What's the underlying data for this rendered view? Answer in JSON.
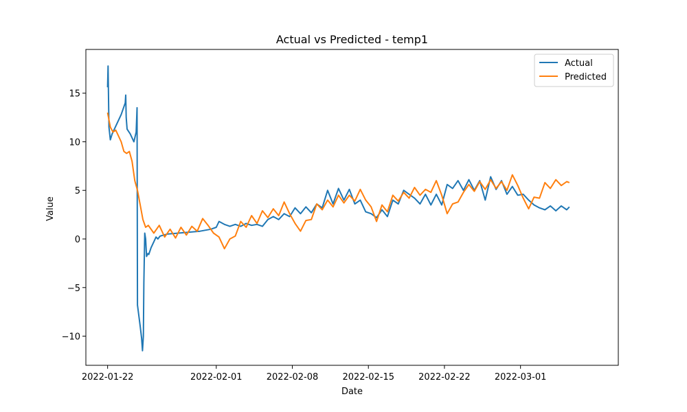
{
  "chart_data": {
    "type": "line",
    "title": "Actual vs Predicted - temp1",
    "xlabel": "Date",
    "ylabel": "Value",
    "xlim": [
      "2022-01-20",
      "2022-03-10"
    ],
    "ylim": [
      -13,
      19.5
    ],
    "x_ticks": [
      "2022-01-22",
      "2022-02-01",
      "2022-02-08",
      "2022-02-15",
      "2022-02-22",
      "2022-03-01"
    ],
    "y_ticks": [
      15,
      10,
      5,
      0,
      -5,
      -10
    ],
    "y_tick_labels": [
      "15",
      "10",
      "5",
      "0",
      "−5",
      "−10"
    ],
    "grid": false,
    "legend_position": "top-right",
    "series": [
      {
        "name": "Actual",
        "color": "#1f77b4",
        "points": [
          [
            "2022-01-22 00:00",
            15.6
          ],
          [
            "2022-01-22 01:00",
            17.8
          ],
          [
            "2022-01-22 03:00",
            11.5
          ],
          [
            "2022-01-22 06:00",
            10.2
          ],
          [
            "2022-01-22 10:00",
            10.8
          ],
          [
            "2022-01-23 06:00",
            12.8
          ],
          [
            "2022-01-23 15:00",
            14.0
          ],
          [
            "2022-01-23 16:00",
            14.8
          ],
          [
            "2022-01-23 17:00",
            12.5
          ],
          [
            "2022-01-23 19:00",
            11.3
          ],
          [
            "2022-01-24 02:00",
            10.8
          ],
          [
            "2022-01-24 10:00",
            10.0
          ],
          [
            "2022-01-24 15:00",
            11.0
          ],
          [
            "2022-01-24 17:00",
            13.5
          ],
          [
            "2022-01-24 18:00",
            -6.8
          ],
          [
            "2022-01-25 00:00",
            -9.0
          ],
          [
            "2022-01-25 03:00",
            -10.2
          ],
          [
            "2022-01-25 05:00",
            -11.5
          ],
          [
            "2022-01-25 07:00",
            -10.0
          ],
          [
            "2022-01-25 08:00",
            -4.5
          ],
          [
            "2022-01-25 10:00",
            0.6
          ],
          [
            "2022-01-25 12:00",
            0.0
          ],
          [
            "2022-01-25 14:00",
            -1.8
          ],
          [
            "2022-01-25 17:00",
            -1.5
          ],
          [
            "2022-01-25 19:00",
            -1.6
          ],
          [
            "2022-01-26 00:00",
            -0.9
          ],
          [
            "2022-01-26 06:00",
            -0.3
          ],
          [
            "2022-01-26 11:00",
            0.2
          ],
          [
            "2022-01-26 15:00",
            0.0
          ],
          [
            "2022-01-26 20:00",
            0.3
          ],
          [
            "2022-01-27 12:00",
            0.5
          ],
          [
            "2022-01-28 12:00",
            0.6
          ],
          [
            "2022-01-29 12:00",
            0.7
          ],
          [
            "2022-01-30 12:00",
            0.8
          ],
          [
            "2022-01-31 12:00",
            1.0
          ],
          [
            "2022-02-01 00:00",
            1.2
          ],
          [
            "2022-02-01 06:00",
            1.8
          ],
          [
            "2022-02-01 18:00",
            1.5
          ],
          [
            "2022-02-02 06:00",
            1.3
          ],
          [
            "2022-02-02 18:00",
            1.5
          ],
          [
            "2022-02-03 06:00",
            1.3
          ],
          [
            "2022-02-03 18:00",
            1.6
          ],
          [
            "2022-02-04 06:00",
            1.4
          ],
          [
            "2022-02-04 18:00",
            1.5
          ],
          [
            "2022-02-05 06:00",
            1.3
          ],
          [
            "2022-02-05 18:00",
            2.0
          ],
          [
            "2022-02-06 06:00",
            2.3
          ],
          [
            "2022-02-06 18:00",
            2.0
          ],
          [
            "2022-02-07 06:00",
            2.6
          ],
          [
            "2022-02-07 18:00",
            2.3
          ],
          [
            "2022-02-08 06:00",
            3.2
          ],
          [
            "2022-02-08 18:00",
            2.6
          ],
          [
            "2022-02-09 06:00",
            3.3
          ],
          [
            "2022-02-09 18:00",
            2.7
          ],
          [
            "2022-02-10 06:00",
            3.6
          ],
          [
            "2022-02-10 18:00",
            3.2
          ],
          [
            "2022-02-11 06:00",
            5.0
          ],
          [
            "2022-02-11 18:00",
            3.6
          ],
          [
            "2022-02-12 06:00",
            5.2
          ],
          [
            "2022-02-12 18:00",
            4.0
          ],
          [
            "2022-02-13 06:00",
            5.1
          ],
          [
            "2022-02-13 18:00",
            3.6
          ],
          [
            "2022-02-14 06:00",
            4.0
          ],
          [
            "2022-02-14 18:00",
            2.8
          ],
          [
            "2022-02-15 06:00",
            2.6
          ],
          [
            "2022-02-15 18:00",
            2.2
          ],
          [
            "2022-02-16 06:00",
            3.0
          ],
          [
            "2022-02-16 18:00",
            2.3
          ],
          [
            "2022-02-17 06:00",
            4.0
          ],
          [
            "2022-02-17 18:00",
            3.6
          ],
          [
            "2022-02-18 06:00",
            5.0
          ],
          [
            "2022-02-18 18:00",
            4.6
          ],
          [
            "2022-02-19 06:00",
            4.2
          ],
          [
            "2022-02-19 18:00",
            3.6
          ],
          [
            "2022-02-20 06:00",
            4.6
          ],
          [
            "2022-02-20 18:00",
            3.5
          ],
          [
            "2022-02-21 06:00",
            4.6
          ],
          [
            "2022-02-21 18:00",
            3.5
          ],
          [
            "2022-02-22 06:00",
            5.6
          ],
          [
            "2022-02-22 18:00",
            5.2
          ],
          [
            "2022-02-23 06:00",
            6.0
          ],
          [
            "2022-02-23 18:00",
            5.0
          ],
          [
            "2022-02-24 06:00",
            6.1
          ],
          [
            "2022-02-24 18:00",
            5.0
          ],
          [
            "2022-02-25 06:00",
            6.0
          ],
          [
            "2022-02-25 18:00",
            4.0
          ],
          [
            "2022-02-26 06:00",
            6.4
          ],
          [
            "2022-02-26 18:00",
            5.1
          ],
          [
            "2022-02-27 06:00",
            6.0
          ],
          [
            "2022-02-27 18:00",
            4.6
          ],
          [
            "2022-02-28 06:00",
            5.4
          ],
          [
            "2022-02-28 18:00",
            4.5
          ],
          [
            "2022-03-01 06:00",
            4.6
          ],
          [
            "2022-03-01 18:00",
            4.0
          ],
          [
            "2022-03-02 06:00",
            3.5
          ],
          [
            "2022-03-02 18:00",
            3.2
          ],
          [
            "2022-03-03 06:00",
            3.0
          ],
          [
            "2022-03-03 18:00",
            3.4
          ],
          [
            "2022-03-04 06:00",
            2.9
          ],
          [
            "2022-03-04 18:00",
            3.4
          ],
          [
            "2022-03-05 06:00",
            3.0
          ],
          [
            "2022-03-05 12:00",
            3.3
          ]
        ]
      },
      {
        "name": "Predicted",
        "color": "#ff7f0e",
        "points": [
          [
            "2022-01-22 00:00",
            13.0
          ],
          [
            "2022-01-22 06:00",
            11.5
          ],
          [
            "2022-01-22 12:00",
            11.0
          ],
          [
            "2022-01-22 18:00",
            11.2
          ],
          [
            "2022-01-23 06:00",
            10.0
          ],
          [
            "2022-01-23 12:00",
            9.0
          ],
          [
            "2022-01-23 18:00",
            8.8
          ],
          [
            "2022-01-24 00:00",
            9.0
          ],
          [
            "2022-01-24 06:00",
            8.0
          ],
          [
            "2022-01-24 12:00",
            6.0
          ],
          [
            "2022-01-24 18:00",
            5.0
          ],
          [
            "2022-01-25 00:00",
            3.5
          ],
          [
            "2022-01-25 06:00",
            2.0
          ],
          [
            "2022-01-25 12:00",
            1.2
          ],
          [
            "2022-01-25 18:00",
            1.4
          ],
          [
            "2022-01-26 06:00",
            0.6
          ],
          [
            "2022-01-26 18:00",
            1.4
          ],
          [
            "2022-01-27 06:00",
            0.2
          ],
          [
            "2022-01-27 18:00",
            1.0
          ],
          [
            "2022-01-28 06:00",
            0.1
          ],
          [
            "2022-01-28 18:00",
            1.2
          ],
          [
            "2022-01-29 06:00",
            0.4
          ],
          [
            "2022-01-29 18:00",
            1.3
          ],
          [
            "2022-01-30 06:00",
            0.8
          ],
          [
            "2022-01-30 18:00",
            2.1
          ],
          [
            "2022-01-31 06:00",
            1.4
          ],
          [
            "2022-01-31 18:00",
            0.6
          ],
          [
            "2022-02-01 06:00",
            0.2
          ],
          [
            "2022-02-01 18:00",
            -1.0
          ],
          [
            "2022-02-02 06:00",
            0.0
          ],
          [
            "2022-02-02 18:00",
            0.3
          ],
          [
            "2022-02-03 06:00",
            1.8
          ],
          [
            "2022-02-03 18:00",
            1.2
          ],
          [
            "2022-02-04 06:00",
            2.4
          ],
          [
            "2022-02-04 18:00",
            1.6
          ],
          [
            "2022-02-05 06:00",
            2.9
          ],
          [
            "2022-02-05 18:00",
            2.2
          ],
          [
            "2022-02-06 06:00",
            3.1
          ],
          [
            "2022-02-06 18:00",
            2.4
          ],
          [
            "2022-02-07 06:00",
            3.8
          ],
          [
            "2022-02-07 18:00",
            2.6
          ],
          [
            "2022-02-08 06:00",
            1.6
          ],
          [
            "2022-02-08 18:00",
            0.8
          ],
          [
            "2022-02-09 06:00",
            1.9
          ],
          [
            "2022-02-09 18:00",
            2.0
          ],
          [
            "2022-02-10 06:00",
            3.6
          ],
          [
            "2022-02-10 18:00",
            3.0
          ],
          [
            "2022-02-11 06:00",
            4.0
          ],
          [
            "2022-02-11 18:00",
            3.3
          ],
          [
            "2022-02-12 06:00",
            4.5
          ],
          [
            "2022-02-12 18:00",
            3.7
          ],
          [
            "2022-02-13 06:00",
            4.5
          ],
          [
            "2022-02-13 18:00",
            3.9
          ],
          [
            "2022-02-14 06:00",
            5.1
          ],
          [
            "2022-02-14 18:00",
            4.0
          ],
          [
            "2022-02-15 06:00",
            3.3
          ],
          [
            "2022-02-15 18:00",
            1.8
          ],
          [
            "2022-02-16 06:00",
            3.5
          ],
          [
            "2022-02-16 18:00",
            2.8
          ],
          [
            "2022-02-17 06:00",
            4.5
          ],
          [
            "2022-02-17 18:00",
            3.9
          ],
          [
            "2022-02-18 06:00",
            4.8
          ],
          [
            "2022-02-18 18:00",
            4.2
          ],
          [
            "2022-02-19 06:00",
            5.3
          ],
          [
            "2022-02-19 18:00",
            4.5
          ],
          [
            "2022-02-20 06:00",
            5.1
          ],
          [
            "2022-02-20 18:00",
            4.8
          ],
          [
            "2022-02-21 06:00",
            6.0
          ],
          [
            "2022-02-21 18:00",
            4.5
          ],
          [
            "2022-02-22 06:00",
            2.6
          ],
          [
            "2022-02-22 18:00",
            3.6
          ],
          [
            "2022-02-23 06:00",
            3.8
          ],
          [
            "2022-02-23 18:00",
            4.8
          ],
          [
            "2022-02-24 06:00",
            5.6
          ],
          [
            "2022-02-24 18:00",
            4.9
          ],
          [
            "2022-02-25 06:00",
            5.9
          ],
          [
            "2022-02-25 18:00",
            5.1
          ],
          [
            "2022-02-26 06:00",
            6.1
          ],
          [
            "2022-02-26 18:00",
            5.2
          ],
          [
            "2022-02-27 06:00",
            5.9
          ],
          [
            "2022-02-27 18:00",
            5.0
          ],
          [
            "2022-02-28 06:00",
            6.6
          ],
          [
            "2022-02-28 18:00",
            5.5
          ],
          [
            "2022-03-01 06:00",
            4.2
          ],
          [
            "2022-03-01 18:00",
            3.1
          ],
          [
            "2022-03-02 06:00",
            4.3
          ],
          [
            "2022-03-02 18:00",
            4.2
          ],
          [
            "2022-03-03 06:00",
            5.8
          ],
          [
            "2022-03-03 18:00",
            5.2
          ],
          [
            "2022-03-04 06:00",
            6.1
          ],
          [
            "2022-03-04 18:00",
            5.5
          ],
          [
            "2022-03-05 06:00",
            5.9
          ],
          [
            "2022-03-05 12:00",
            5.8
          ]
        ]
      }
    ]
  }
}
